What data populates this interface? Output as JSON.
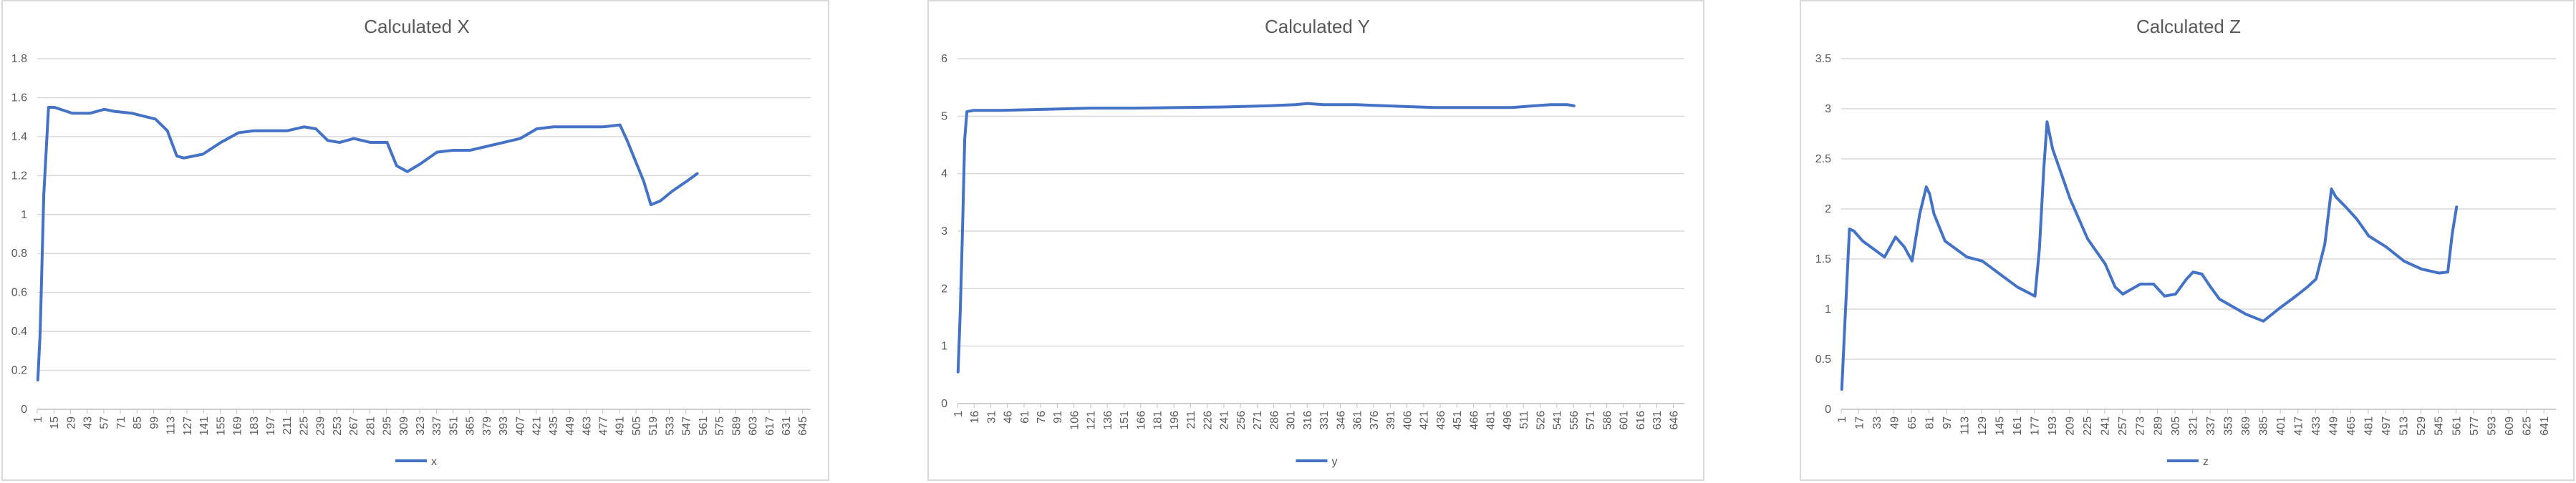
{
  "chart_data": [
    {
      "type": "line",
      "title": "Calculated X",
      "xlabel": "",
      "ylabel": "",
      "ylim": [
        0,
        1.8
      ],
      "yticks": [
        "0",
        "0.2",
        "0.4",
        "0.6",
        "0.8",
        "1",
        "1.2",
        "1.4",
        "1.6",
        "1.8"
      ],
      "xtick_labels": [
        "1",
        "15",
        "29",
        "43",
        "57",
        "71",
        "85",
        "99",
        "113",
        "127",
        "141",
        "155",
        "169",
        "183",
        "197",
        "211",
        "225",
        "239",
        "253",
        "267",
        "281",
        "295",
        "309",
        "323",
        "337",
        "351",
        "365",
        "379",
        "393",
        "407",
        "421",
        "435",
        "449",
        "463",
        "477",
        "491",
        "505",
        "519",
        "533",
        "547",
        "561",
        "575",
        "589",
        "603",
        "617",
        "631",
        "645"
      ],
      "x_count": 651,
      "grid": true,
      "legend_position": "bottom",
      "color": "#4472c4",
      "series": [
        {
          "name": "x",
          "x": [
            1,
            3,
            6,
            10,
            15,
            20,
            30,
            45,
            57,
            65,
            80,
            100,
            110,
            118,
            124,
            140,
            155,
            170,
            183,
            197,
            211,
            225,
            235,
            245,
            255,
            267,
            281,
            295,
            303,
            312,
            323,
            337,
            351,
            365,
            379,
            393,
            407,
            421,
            435,
            449,
            463,
            477,
            491,
            497,
            505,
            511,
            517,
            525,
            535,
            547,
            556
          ],
          "y": [
            0.15,
            0.4,
            1.1,
            1.55,
            1.55,
            1.54,
            1.52,
            1.52,
            1.54,
            1.53,
            1.52,
            1.49,
            1.43,
            1.3,
            1.29,
            1.31,
            1.37,
            1.42,
            1.43,
            1.43,
            1.43,
            1.45,
            1.44,
            1.38,
            1.37,
            1.39,
            1.37,
            1.37,
            1.25,
            1.22,
            1.26,
            1.32,
            1.33,
            1.33,
            1.35,
            1.37,
            1.39,
            1.44,
            1.45,
            1.45,
            1.45,
            1.45,
            1.46,
            1.38,
            1.26,
            1.17,
            1.05,
            1.07,
            1.12,
            1.17,
            1.21
          ]
        }
      ]
    },
    {
      "type": "line",
      "title": "Calculated Y",
      "xlabel": "",
      "ylabel": "",
      "ylim": [
        0,
        6
      ],
      "yticks": [
        "0",
        "1",
        "2",
        "3",
        "4",
        "5",
        "6"
      ],
      "xtick_labels": [
        "1",
        "16",
        "31",
        "46",
        "61",
        "76",
        "91",
        "106",
        "121",
        "136",
        "151",
        "166",
        "181",
        "196",
        "211",
        "226",
        "241",
        "256",
        "271",
        "286",
        "301",
        "316",
        "331",
        "346",
        "361",
        "376",
        "391",
        "406",
        "421",
        "436",
        "451",
        "466",
        "481",
        "496",
        "511",
        "526",
        "541",
        "556",
        "571",
        "586",
        "601",
        "616",
        "631",
        "646"
      ],
      "x_count": 655,
      "grid": true,
      "legend_position": "bottom",
      "color": "#4472c4",
      "series": [
        {
          "name": "y",
          "x": [
            1,
            3,
            5,
            7,
            9,
            15,
            40,
            80,
            120,
            160,
            200,
            240,
            280,
            305,
            316,
            330,
            360,
            400,
            430,
            470,
            500,
            520,
            535,
            550,
            556
          ],
          "y": [
            0.55,
            1.6,
            3.0,
            4.6,
            5.08,
            5.1,
            5.1,
            5.12,
            5.14,
            5.14,
            5.15,
            5.16,
            5.18,
            5.2,
            5.22,
            5.2,
            5.2,
            5.17,
            5.15,
            5.15,
            5.15,
            5.18,
            5.2,
            5.2,
            5.18
          ]
        }
      ]
    },
    {
      "type": "line",
      "title": "Calculated Z",
      "xlabel": "",
      "ylabel": "",
      "ylim": [
        0,
        3.5
      ],
      "yticks": [
        "0",
        "0.5",
        "1",
        "1.5",
        "2",
        "2.5",
        "3",
        "3.5"
      ],
      "xtick_labels": [
        "1",
        "17",
        "33",
        "49",
        "65",
        "81",
        "97",
        "113",
        "129",
        "145",
        "161",
        "177",
        "193",
        "209",
        "225",
        "241",
        "257",
        "273",
        "289",
        "305",
        "321",
        "337",
        "353",
        "369",
        "385",
        "401",
        "417",
        "433",
        "449",
        "465",
        "481",
        "497",
        "513",
        "529",
        "545",
        "561",
        "577",
        "593",
        "609",
        "625",
        "641"
      ],
      "x_count": 651,
      "grid": true,
      "legend_position": "bottom",
      "color": "#4472c4",
      "series": [
        {
          "name": "z",
          "x": [
            1,
            4,
            8,
            12,
            20,
            30,
            40,
            50,
            58,
            65,
            72,
            78,
            81,
            85,
            95,
            105,
            115,
            129,
            145,
            161,
            177,
            181,
            185,
            188,
            193,
            201,
            209,
            225,
            241,
            250,
            257,
            273,
            285,
            295,
            305,
            315,
            321,
            329,
            337,
            345,
            353,
            369,
            385,
            401,
            411,
            417,
            425,
            433,
            441,
            447,
            451,
            460,
            470,
            481,
            497,
            513,
            529,
            545,
            553,
            557,
            561
          ],
          "y": [
            0.2,
            0.9,
            1.8,
            1.78,
            1.68,
            1.6,
            1.52,
            1.72,
            1.62,
            1.48,
            1.95,
            2.22,
            2.15,
            1.95,
            1.68,
            1.6,
            1.52,
            1.48,
            1.35,
            1.22,
            1.13,
            1.6,
            2.4,
            2.87,
            2.6,
            2.35,
            2.1,
            1.7,
            1.45,
            1.22,
            1.15,
            1.25,
            1.25,
            1.13,
            1.15,
            1.3,
            1.37,
            1.35,
            1.22,
            1.1,
            1.05,
            0.95,
            0.88,
            1.02,
            1.1,
            1.15,
            1.22,
            1.3,
            1.65,
            2.2,
            2.12,
            2.02,
            1.9,
            1.73,
            1.62,
            1.48,
            1.4,
            1.36,
            1.37,
            1.75,
            2.02
          ]
        }
      ]
    }
  ]
}
